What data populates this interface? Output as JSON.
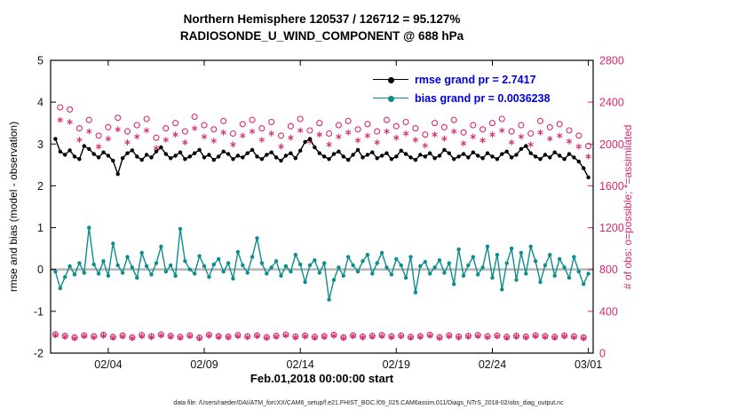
{
  "title": {
    "line1": "Northern Hemisphere 120537 / 126712 = 95.127%",
    "line2": "RADIOSONDE_U_WIND_COMPONENT @ 688 hPa"
  },
  "legend": {
    "rmse_label": "rmse grand pr = 2.7417",
    "bias_label": "bias grand pr = 0.0036238"
  },
  "axes": {
    "left_label": "rmse and bias (model - observation)",
    "right_label": "# of obs: o=possible; *=assimilated",
    "x_label": "Feb.01,2018 00:00:00 start",
    "left_ticks": [
      -2,
      -1,
      0,
      1,
      2,
      3,
      4,
      5
    ],
    "right_ticks": [
      0,
      400,
      800,
      1200,
      1600,
      2000,
      2400,
      2800
    ],
    "x_ticks": [
      {
        "label": "02/04",
        "day": 3
      },
      {
        "label": "02/09",
        "day": 8
      },
      {
        "label": "02/14",
        "day": 13
      },
      {
        "label": "02/19",
        "day": 18
      },
      {
        "label": "02/24",
        "day": 23
      },
      {
        "label": "03/01",
        "day": 28
      }
    ],
    "left_range": [
      -2,
      5
    ],
    "right_range": [
      0,
      2800
    ],
    "x_range": [
      0,
      28.25
    ]
  },
  "colors": {
    "rmse": "#000000",
    "bias": "#0d8d8d",
    "obs_count": "#d62a6e",
    "legend_text": "#0000dd",
    "zero_line": "#b8b8b8"
  },
  "footer": "data file: /Users/raeder/DAI/ATM_forcXX/CAM6_setup/f.e21.FHIST_BGC.f09_025.CAM6assim.011/Diags_NTrS_2018-02/obs_diag_output.nc",
  "chart_data": {
    "type": "line",
    "title": "Northern Hemisphere 120537 / 126712 = 95.127% — RADIOSONDE_U_WIND_COMPONENT @ 688 hPa",
    "xlabel": "Feb.01,2018 00:00:00 start",
    "ylabel_left": "rmse and bias (model - observation)",
    "ylabel_right": "# of obs: o=possible; *=assimilated",
    "left_ylim": [
      -2,
      5
    ],
    "right_ylim": [
      0,
      2800
    ],
    "grid": false,
    "legend_position": "top-center-inside",
    "x_unit": "days since Feb.01,2018 00:00, 6-hourly bins",
    "x_start": 0.25,
    "x_step": 0.25,
    "n_points": 112,
    "series": [
      {
        "name": "rmse",
        "axis": "left",
        "marker": "filled-circle",
        "color_key": "rmse",
        "values": [
          3.12,
          2.82,
          2.74,
          2.85,
          2.7,
          2.64,
          2.95,
          2.88,
          2.76,
          2.68,
          2.8,
          2.72,
          2.6,
          2.28,
          2.66,
          2.78,
          2.85,
          2.7,
          2.62,
          2.74,
          2.68,
          2.82,
          2.92,
          2.76,
          2.66,
          2.72,
          2.8,
          2.64,
          2.7,
          2.78,
          2.86,
          2.68,
          2.74,
          2.62,
          2.7,
          2.82,
          2.76,
          2.64,
          2.72,
          2.68,
          2.78,
          2.86,
          2.7,
          2.64,
          2.74,
          2.8,
          2.68,
          2.6,
          2.72,
          2.78,
          2.66,
          2.84,
          3.05,
          3.12,
          2.92,
          2.78,
          2.7,
          2.64,
          2.76,
          2.82,
          2.7,
          2.62,
          2.74,
          2.86,
          2.68,
          2.74,
          2.8,
          2.66,
          2.72,
          2.78,
          2.64,
          2.7,
          2.84,
          2.76,
          2.68,
          2.62,
          2.74,
          2.7,
          2.78,
          2.66,
          2.72,
          2.86,
          2.78,
          2.64,
          2.7,
          2.76,
          2.68,
          2.8,
          2.72,
          2.66,
          2.78,
          2.7,
          2.64,
          2.76,
          2.82,
          2.68,
          2.74,
          2.88,
          2.95,
          2.78,
          2.7,
          2.64,
          2.74,
          2.68,
          2.8,
          2.72,
          2.64,
          2.76,
          2.68,
          2.58,
          2.42,
          2.2
        ]
      },
      {
        "name": "bias",
        "axis": "left",
        "marker": "filled-circle",
        "color_key": "bias",
        "values": [
          -0.05,
          -0.45,
          -0.18,
          0.08,
          -0.12,
          0.15,
          -0.08,
          1.0,
          0.12,
          -0.1,
          0.2,
          -0.15,
          0.62,
          0.1,
          -0.08,
          0.3,
          0.05,
          -0.2,
          0.4,
          0.08,
          -0.12,
          0.15,
          0.55,
          -0.05,
          0.1,
          -0.15,
          0.97,
          0.2,
          0.0,
          -0.1,
          0.32,
          0.08,
          -0.18,
          0.12,
          0.25,
          -0.05,
          0.15,
          -0.22,
          0.42,
          0.1,
          -0.08,
          0.3,
          0.75,
          0.15,
          -0.1,
          0.05,
          0.2,
          -0.15,
          0.08,
          -0.05,
          0.35,
          0.12,
          -0.3,
          0.1,
          0.22,
          -0.08,
          0.15,
          -0.72,
          -0.25,
          0.05,
          -0.15,
          0.3,
          0.1,
          -0.05,
          0.2,
          0.35,
          -0.1,
          0.15,
          0.4,
          0.05,
          -0.12,
          0.25,
          0.1,
          -0.2,
          0.3,
          -0.55,
          0.08,
          0.18,
          -0.1,
          0.05,
          0.22,
          -0.08,
          0.15,
          -0.35,
          0.48,
          -0.15,
          0.1,
          0.3,
          -0.12,
          0.05,
          0.55,
          -0.2,
          0.35,
          -0.48,
          0.15,
          0.5,
          -0.25,
          0.4,
          -0.1,
          0.55,
          0.2,
          -0.3,
          0.1,
          0.35,
          -0.15,
          0.25,
          0.05,
          -0.2,
          0.3,
          -0.05,
          -0.35,
          -0.1
        ]
      },
      {
        "name": "N_possible",
        "axis": "right",
        "marker": "open-circle",
        "color_key": "obs_count",
        "values": [
          180,
          2350,
          165,
          2330,
          150,
          2150,
          170,
          2230,
          160,
          2080,
          175,
          2160,
          155,
          2250,
          168,
          2120,
          150,
          2180,
          172,
          2240,
          160,
          2060,
          178,
          2150,
          165,
          2200,
          155,
          2120,
          170,
          2260,
          148,
          2180,
          175,
          2140,
          162,
          2220,
          158,
          2100,
          172,
          2190,
          160,
          2230,
          170,
          2150,
          152,
          2210,
          165,
          2080,
          178,
          2170,
          158,
          2240,
          168,
          2130,
          155,
          2200,
          162,
          2100,
          175,
          2180,
          150,
          2220,
          170,
          2140,
          158,
          2190,
          165,
          2120,
          172,
          2230,
          160,
          2170,
          168,
          2210,
          155,
          2150,
          162,
          2090,
          175,
          2200,
          152,
          2160,
          170,
          2230,
          158,
          2110,
          165,
          2180,
          172,
          2140,
          160,
          2200,
          168,
          2240,
          155,
          2120,
          165,
          2180,
          158,
          2100,
          170,
          2220,
          162,
          2160,
          155,
          2190,
          168,
          2130,
          160,
          2080,
          150,
          1980
        ]
      },
      {
        "name": "N_assimilated",
        "axis": "right",
        "marker": "asterisk",
        "color_key": "obs_count",
        "values": [
          171,
          2230,
          157,
          2210,
          142,
          2040,
          162,
          2120,
          152,
          1975,
          166,
          2050,
          147,
          2140,
          160,
          2015,
          143,
          2070,
          163,
          2130,
          152,
          1960,
          169,
          2040,
          157,
          2090,
          147,
          2015,
          162,
          2150,
          141,
          2070,
          166,
          2030,
          154,
          2110,
          150,
          1995,
          163,
          2080,
          152,
          2120,
          162,
          2040,
          144,
          2100,
          157,
          1975,
          169,
          2060,
          150,
          2130,
          160,
          2025,
          147,
          2090,
          154,
          1995,
          166,
          2070,
          143,
          2110,
          162,
          2035,
          150,
          2080,
          157,
          2015,
          163,
          2120,
          152,
          2060,
          160,
          2100,
          147,
          2040,
          154,
          1985,
          166,
          2090,
          144,
          2050,
          162,
          2120,
          150,
          2005,
          157,
          2070,
          163,
          2035,
          152,
          2090,
          160,
          2130,
          147,
          2015,
          157,
          2070,
          150,
          1995,
          162,
          2110,
          154,
          2050,
          147,
          2080,
          160,
          2025,
          152,
          1975,
          142,
          1880
        ]
      }
    ]
  }
}
